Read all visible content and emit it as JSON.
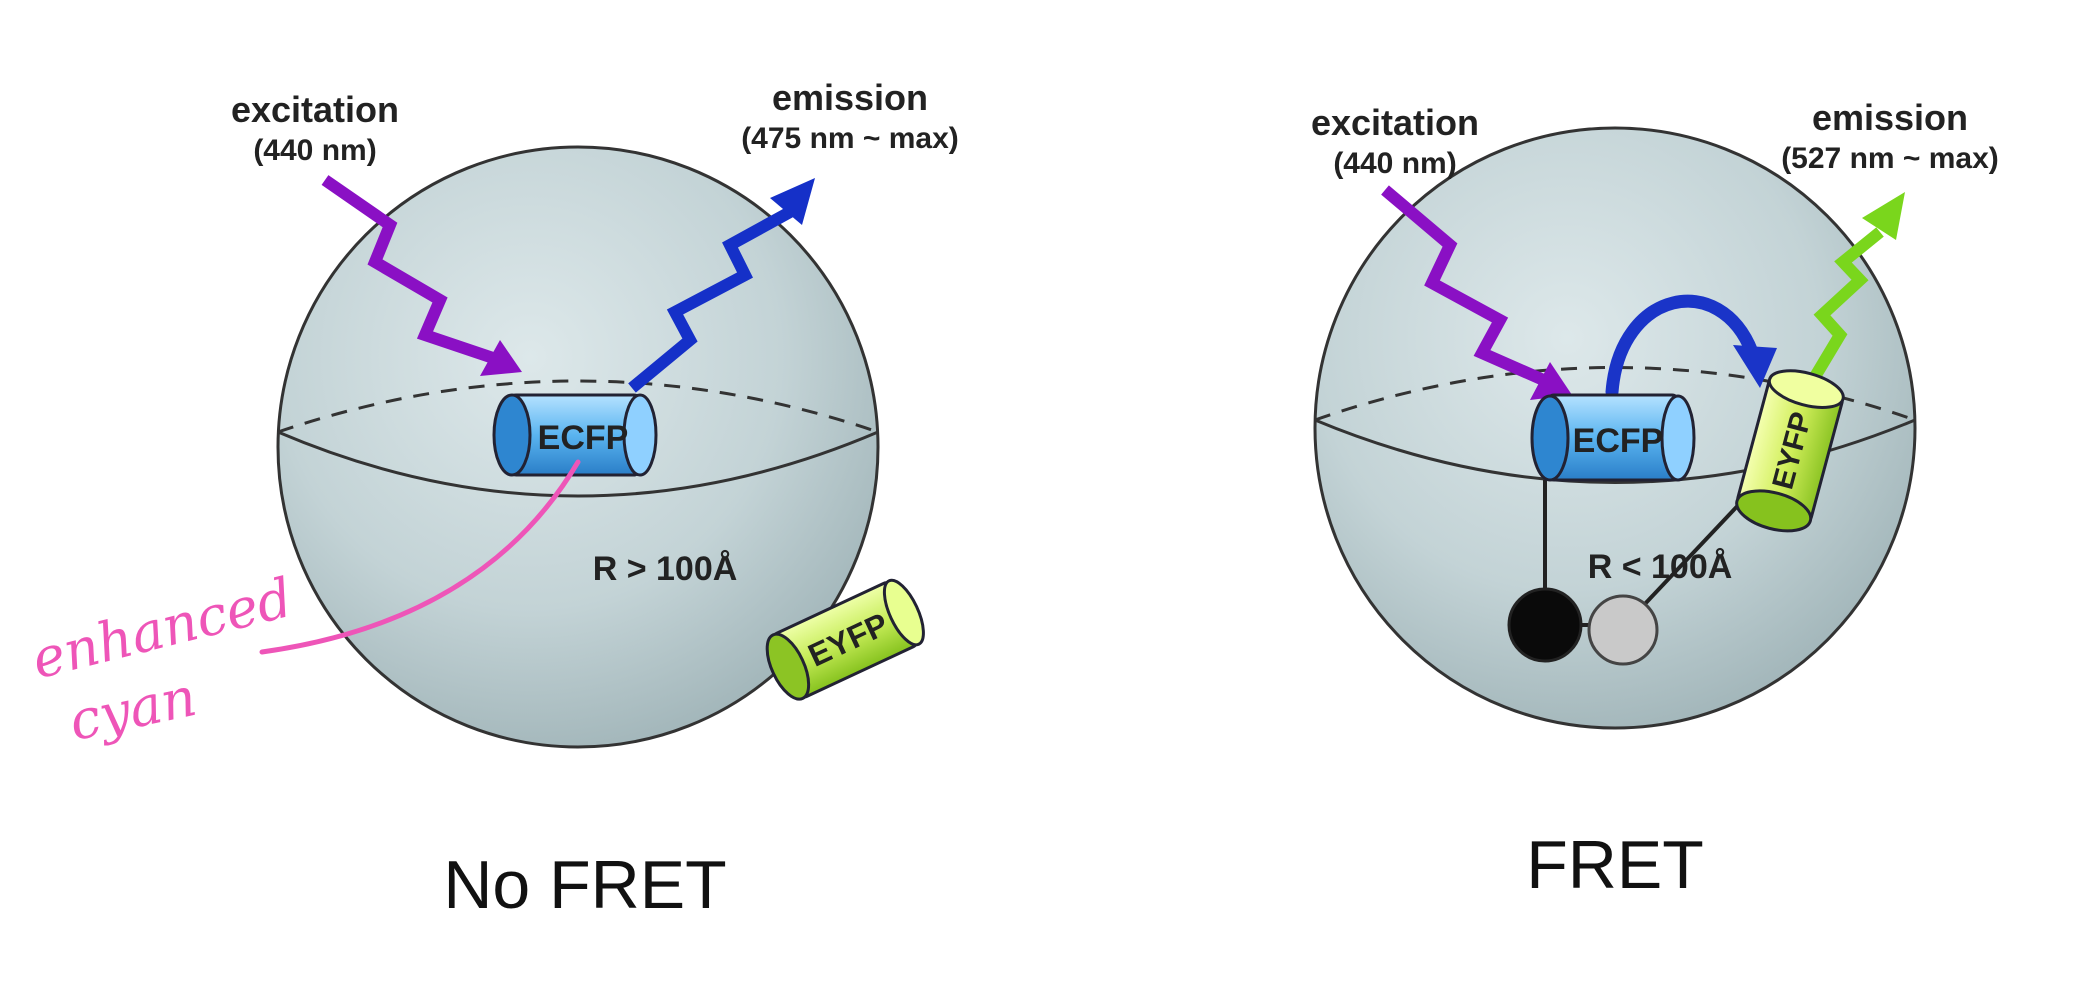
{
  "colors": {
    "excitation": "#8a10c4",
    "emission_blue": "#1530c8",
    "emission_green": "#7ad61c",
    "transfer": "#1a34c8",
    "annotation": "#ee55b8",
    "ecfp": "#5ab4f0",
    "eyfp": "#c6ec58",
    "sphere": "#c3d3d6"
  },
  "panels": {
    "no_fret": {
      "caption": "No FRET",
      "excitation_title": "excitation",
      "excitation_wavelength": "(440 nm)",
      "emission_title": "emission",
      "emission_wavelength": "(475 nm ~ max)",
      "donor_label": "ECFP",
      "acceptor_label": "EYFP",
      "distance_label": "R > 100Å"
    },
    "fret": {
      "caption": "FRET",
      "excitation_title": "excitation",
      "excitation_wavelength": "(440 nm)",
      "emission_title": "emission",
      "emission_wavelength": "(527 nm ~ max)",
      "donor_label": "ECFP",
      "acceptor_label": "EYFP",
      "distance_label": "R < 100Å"
    }
  },
  "annotation": {
    "line1": "enhanced",
    "line2": "cyan"
  }
}
